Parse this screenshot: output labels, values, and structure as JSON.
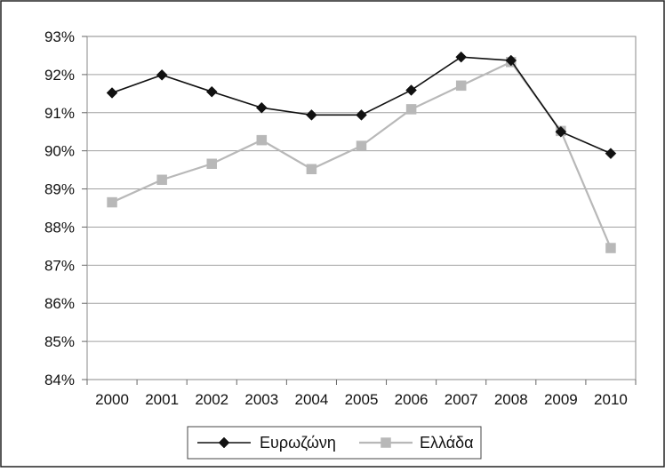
{
  "chart_data": {
    "type": "line",
    "title": "",
    "xlabel": "",
    "ylabel": "",
    "categories": [
      "2000",
      "2001",
      "2002",
      "2003",
      "2004",
      "2005",
      "2006",
      "2007",
      "2008",
      "2009",
      "2010"
    ],
    "y_ticks": [
      "84%",
      "85%",
      "86%",
      "87%",
      "88%",
      "89%",
      "90%",
      "91%",
      "92%",
      "93%"
    ],
    "ylim": [
      84,
      93
    ],
    "y_unit": "%",
    "grid": "horizontal",
    "legend_position": "bottom",
    "series": [
      {
        "name": "Ευρωζώνη",
        "marker": "diamond",
        "color": "#111111",
        "values": [
          91.52,
          91.99,
          91.55,
          91.13,
          90.94,
          90.94,
          91.59,
          92.46,
          92.37,
          90.5,
          89.93
        ]
      },
      {
        "name": "Ελλάδα",
        "marker": "square",
        "color": "#b8b8b8",
        "values": [
          88.65,
          89.24,
          89.66,
          90.28,
          89.52,
          90.13,
          91.09,
          91.71,
          92.33,
          90.52,
          87.45
        ]
      }
    ]
  }
}
